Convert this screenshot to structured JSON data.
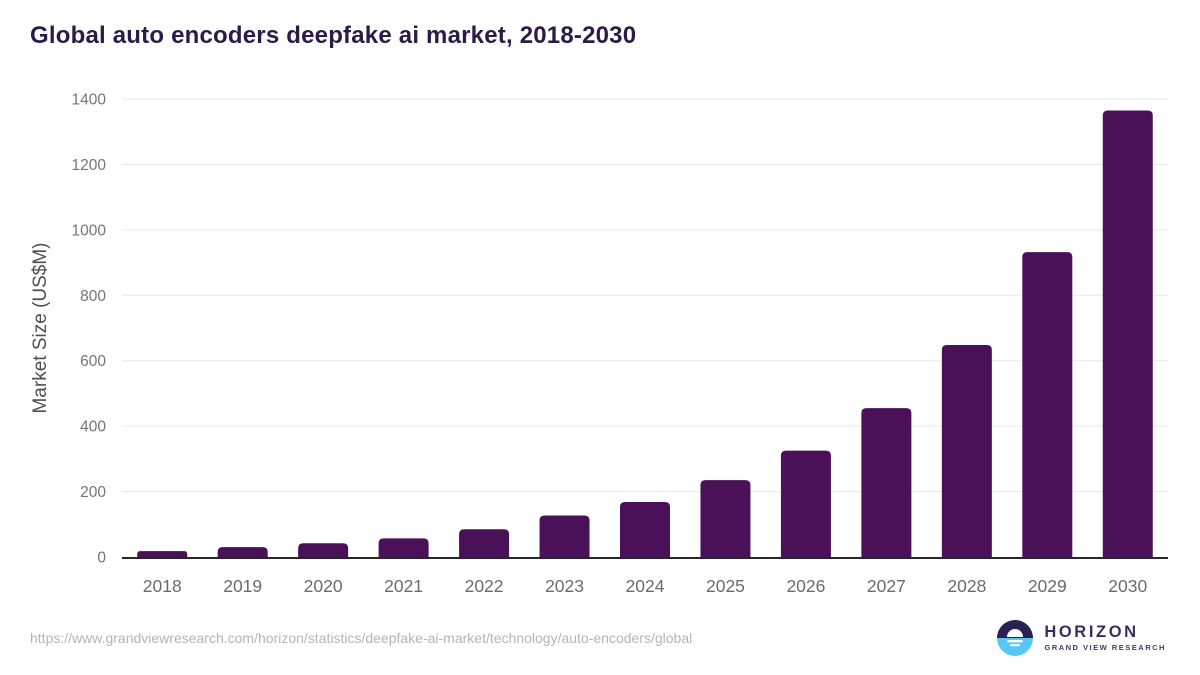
{
  "title": "Global auto encoders deepfake ai market, 2018-2030",
  "colors": {
    "bar": "#4a1158",
    "title": "#2e1a47",
    "y_tick": "#757575",
    "x_tick": "#6b6b6b",
    "y_title": "#4f4f4f",
    "gridline": "#e7e7e7",
    "axis_line": "#262626",
    "url_text": "#b5b5b5",
    "logo_dark": "#2b2150",
    "logo_blue": "#58c7f3",
    "logo_white": "#ffffff",
    "logo_text": "#3d2b5e",
    "logo_tagline": "#483768"
  },
  "chart_data": {
    "type": "bar",
    "title": "Global auto encoders deepfake ai market, 2018-2030",
    "categories": [
      "2018",
      "2019",
      "2020",
      "2021",
      "2022",
      "2023",
      "2024",
      "2025",
      "2026",
      "2027",
      "2028",
      "2029",
      "2030"
    ],
    "values": [
      18,
      30,
      42,
      57,
      85,
      127,
      168,
      235,
      325,
      455,
      648,
      932,
      1365
    ],
    "xlabel": "",
    "ylabel": "Market Size (US$M)",
    "ylim": [
      0,
      1400
    ],
    "ytick_step": 200,
    "grid": true,
    "legend": false
  },
  "footer": {
    "source_url": "https://www.grandviewresearch.com/horizon/statistics/deepfake-ai-market/technology/auto-encoders/global",
    "logo": {
      "name": "HORIZON",
      "tagline": "GRAND VIEW RESEARCH"
    }
  }
}
